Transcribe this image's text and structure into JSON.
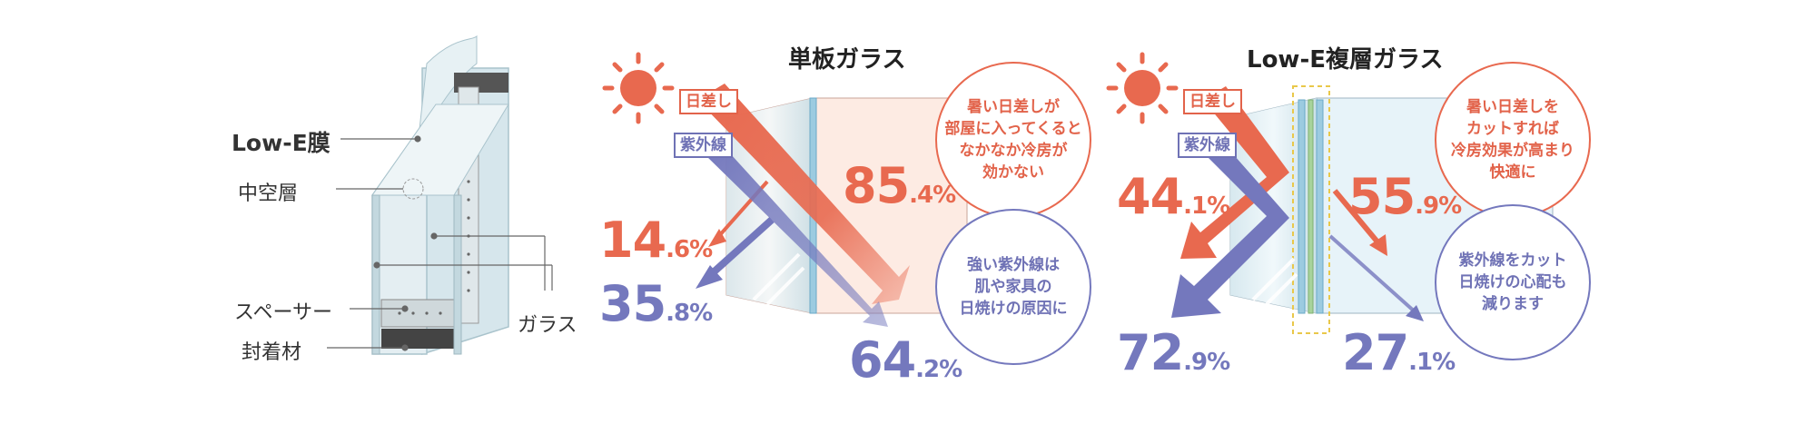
{
  "cross_section": {
    "labels": {
      "low_e_film": "Low-E膜",
      "hollow_layer": "中空層",
      "spacer": "スペーサー",
      "sealant": "封着材",
      "glass": "ガラス"
    }
  },
  "single_glass": {
    "title": "単板ガラス",
    "tag_sun": "日差し",
    "tag_uv": "紫外線",
    "reflect_sun_int": "14",
    "reflect_sun_dec": ".6%",
    "reflect_uv_int": "35",
    "reflect_uv_dec": ".8%",
    "through_sun_int": "85",
    "through_sun_dec": ".4%",
    "through_uv_int": "64",
    "through_uv_dec": ".2%",
    "bubble_heat": "暑い日差しが\n部屋に入ってくると\nなかなか冷房が\n効かない",
    "bubble_uv": "強い紫外線は\n肌や家具の\n日焼けの原因に"
  },
  "lowe_glass": {
    "title": "Low-E複層ガラス",
    "tag_sun": "日差し",
    "tag_uv": "紫外線",
    "reflect_sun_int": "44",
    "reflect_sun_dec": ".1%",
    "reflect_uv_int": "72",
    "reflect_uv_dec": ".9%",
    "through_sun_int": "55",
    "through_sun_dec": ".9%",
    "through_uv_int": "27",
    "through_uv_dec": ".1%",
    "bubble_heat": "暑い日差しを\nカットすれば\n冷房効果が高まり\n快適に",
    "bubble_uv": "紫外線をカット\n日焼けの心配も\n減ります"
  },
  "colors": {
    "sun": "#e8694f",
    "uv": "#7478bd",
    "glass": "#b9dbe8",
    "room_warm": "#fde6dc",
    "room_cool": "#e3f1f8",
    "film_gold": "#e9c84a"
  },
  "icons": [
    "sun-icon",
    "sun-icon"
  ]
}
